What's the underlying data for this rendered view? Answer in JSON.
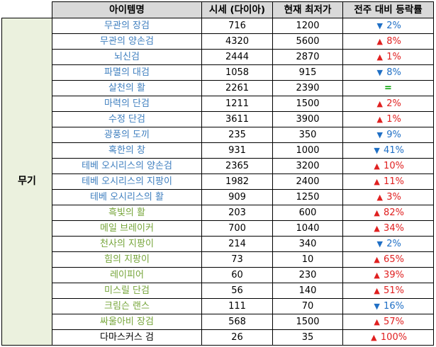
{
  "header": {
    "name": "아이템명",
    "price": "시세 (다이아)",
    "lowest": "현재 최저가",
    "change": "전주 대비 등락률"
  },
  "category": "무기",
  "colors": {
    "header_bg": "#d9d9d9",
    "category_bg": "#ebf1de",
    "up": "#e02020",
    "down": "#1f6fc5",
    "flat": "#00a000",
    "blue_text": "#3f7fbf",
    "green_text": "#76a53a",
    "black_text": "#000000"
  },
  "rows": [
    {
      "name": "무관의 장검",
      "price": "716",
      "lowest": "1200",
      "dir": "down",
      "arrow": "▼",
      "pct": "2%",
      "color": "#3f7fbf"
    },
    {
      "name": "무관의 양손검",
      "price": "4320",
      "lowest": "5600",
      "dir": "up",
      "arrow": "▲",
      "pct": "8%",
      "color": "#3f7fbf"
    },
    {
      "name": "뇌신검",
      "price": "2444",
      "lowest": "2870",
      "dir": "up",
      "arrow": "▲",
      "pct": "1%",
      "color": "#3f7fbf"
    },
    {
      "name": "파멸의 대검",
      "price": "1058",
      "lowest": "915",
      "dir": "down",
      "arrow": "▼",
      "pct": "8%",
      "color": "#3f7fbf"
    },
    {
      "name": "살천의 활",
      "price": "2261",
      "lowest": "2390",
      "dir": "flat",
      "arrow": "",
      "pct": "=",
      "color": "#3f7fbf"
    },
    {
      "name": "마력의 단검",
      "price": "1211",
      "lowest": "1500",
      "dir": "up",
      "arrow": "▲",
      "pct": "2%",
      "color": "#3f7fbf"
    },
    {
      "name": "수정 단검",
      "price": "3611",
      "lowest": "3900",
      "dir": "up",
      "arrow": "▲",
      "pct": "1%",
      "color": "#3f7fbf"
    },
    {
      "name": "광풍의 도끼",
      "price": "235",
      "lowest": "350",
      "dir": "down",
      "arrow": "▼",
      "pct": "9%",
      "color": "#3f7fbf"
    },
    {
      "name": "혹한의 창",
      "price": "931",
      "lowest": "1000",
      "dir": "down",
      "arrow": "▼",
      "pct": "41%",
      "color": "#3f7fbf"
    },
    {
      "name": "테베 오시리스의 양손검",
      "price": "2365",
      "lowest": "3200",
      "dir": "up",
      "arrow": "▲",
      "pct": "10%",
      "color": "#3f7fbf"
    },
    {
      "name": "테베 오시리스의 지팡이",
      "price": "1982",
      "lowest": "2400",
      "dir": "up",
      "arrow": "▲",
      "pct": "11%",
      "color": "#3f7fbf"
    },
    {
      "name": "테베 오시리스의 활",
      "price": "909",
      "lowest": "1250",
      "dir": "up",
      "arrow": "▲",
      "pct": "3%",
      "color": "#3f7fbf"
    },
    {
      "name": "흑빛의 활",
      "price": "203",
      "lowest": "600",
      "dir": "up",
      "arrow": "▲",
      "pct": "82%",
      "color": "#76a53a"
    },
    {
      "name": "메일 브레이커",
      "price": "700",
      "lowest": "1040",
      "dir": "up",
      "arrow": "▲",
      "pct": "34%",
      "color": "#76a53a"
    },
    {
      "name": "천사의 지팡이",
      "price": "214",
      "lowest": "340",
      "dir": "down",
      "arrow": "▼",
      "pct": "2%",
      "color": "#76a53a"
    },
    {
      "name": "힘의 지팡이",
      "price": "73",
      "lowest": "10",
      "dir": "up",
      "arrow": "▲",
      "pct": "65%",
      "color": "#76a53a"
    },
    {
      "name": "레이피어",
      "price": "60",
      "lowest": "230",
      "dir": "up",
      "arrow": "▲",
      "pct": "39%",
      "color": "#76a53a"
    },
    {
      "name": "미스릴 단검",
      "price": "56",
      "lowest": "140",
      "dir": "up",
      "arrow": "▲",
      "pct": "51%",
      "color": "#76a53a"
    },
    {
      "name": "크림슨 랜스",
      "price": "111",
      "lowest": "70",
      "dir": "down",
      "arrow": "▼",
      "pct": "16%",
      "color": "#76a53a"
    },
    {
      "name": "싸울아비 장검",
      "price": "568",
      "lowest": "1500",
      "dir": "up",
      "arrow": "▲",
      "pct": "57%",
      "color": "#76a53a"
    },
    {
      "name": "다마스커스 검",
      "price": "26",
      "lowest": "35",
      "dir": "up",
      "arrow": "▲",
      "pct": "100%",
      "color": "#000000"
    }
  ]
}
